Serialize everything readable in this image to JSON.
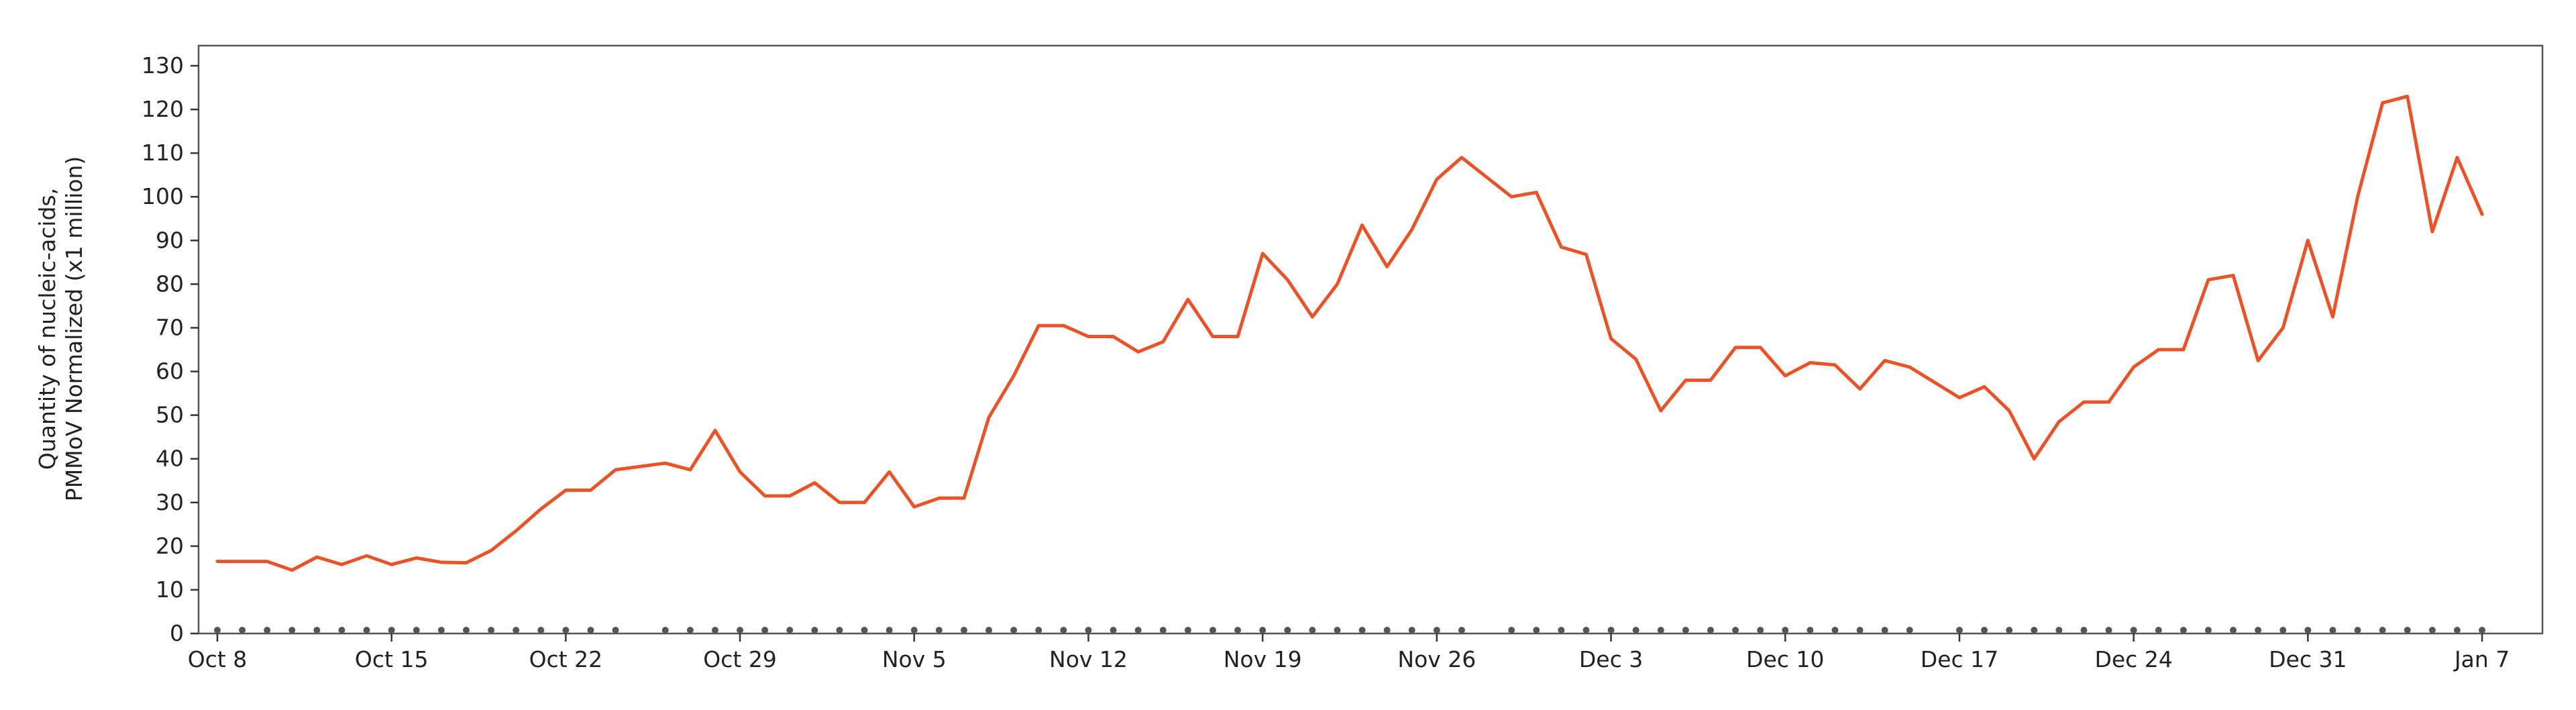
{
  "chart_data": {
    "type": "line",
    "title": "",
    "xlabel": "",
    "ylabel_lines": [
      "Quantity of nucleic-acids,",
      "PMMoV Normalized (x1 million)"
    ],
    "ylim": [
      0,
      130
    ],
    "yticks": [
      0,
      10,
      20,
      30,
      40,
      50,
      60,
      70,
      80,
      90,
      100,
      110,
      120,
      130
    ],
    "grid": false,
    "legend": "none",
    "x_start": "2023-10-08",
    "x_end": "2024-01-07",
    "xtick_labels": [
      "Oct 8",
      "Oct 15",
      "Oct 22",
      "Oct 29",
      "Nov 5",
      "Nov 12",
      "Nov 19",
      "Nov 26",
      "Dec 3",
      "Dec 10",
      "Dec 17",
      "Dec 24",
      "Dec 31",
      "Jan 7"
    ],
    "xtick_dates": [
      "2023-10-08",
      "2023-10-15",
      "2023-10-22",
      "2023-10-29",
      "2023-11-05",
      "2023-11-12",
      "2023-11-19",
      "2023-11-26",
      "2023-12-03",
      "2023-12-10",
      "2023-12-17",
      "2023-12-24",
      "2023-12-31",
      "2024-01-07"
    ],
    "series": [
      {
        "color": "#E8542A",
        "x": [
          "2023-10-08",
          "2023-10-09",
          "2023-10-10",
          "2023-10-11",
          "2023-10-12",
          "2023-10-13",
          "2023-10-14",
          "2023-10-15",
          "2023-10-16",
          "2023-10-17",
          "2023-10-18",
          "2023-10-19",
          "2023-10-20",
          "2023-10-21",
          "2023-10-22",
          "2023-10-23",
          "2023-10-24",
          "2023-10-26",
          "2023-10-27",
          "2023-10-28",
          "2023-10-29",
          "2023-10-30",
          "2023-10-31",
          "2023-11-01",
          "2023-11-02",
          "2023-11-03",
          "2023-11-04",
          "2023-11-05",
          "2023-11-06",
          "2023-11-07",
          "2023-11-08",
          "2023-11-09",
          "2023-11-10",
          "2023-11-11",
          "2023-11-12",
          "2023-11-13",
          "2023-11-14",
          "2023-11-15",
          "2023-11-16",
          "2023-11-17",
          "2023-11-18",
          "2023-11-19",
          "2023-11-20",
          "2023-11-21",
          "2023-11-22",
          "2023-11-23",
          "2023-11-24",
          "2023-11-25",
          "2023-11-26",
          "2023-11-27",
          "2023-11-29",
          "2023-11-30",
          "2023-12-01",
          "2023-12-02",
          "2023-12-03",
          "2023-12-04",
          "2023-12-05",
          "2023-12-06",
          "2023-12-07",
          "2023-12-08",
          "2023-12-09",
          "2023-12-10",
          "2023-12-11",
          "2023-12-12",
          "2023-12-13",
          "2023-12-14",
          "2023-12-15",
          "2023-12-17",
          "2023-12-18",
          "2023-12-19",
          "2023-12-20",
          "2023-12-21",
          "2023-12-22",
          "2023-12-23",
          "2023-12-24",
          "2023-12-25",
          "2023-12-26",
          "2023-12-27",
          "2023-12-28",
          "2023-12-29",
          "2023-12-30",
          "2023-12-31",
          "2024-01-01",
          "2024-01-02",
          "2024-01-03",
          "2024-01-04",
          "2024-01-05",
          "2024-01-06",
          "2024-01-07"
        ],
        "values": [
          16.5,
          16.5,
          16.5,
          14.5,
          17.5,
          15.8,
          17.8,
          15.8,
          17.3,
          16.3,
          16.2,
          19,
          23.5,
          28.5,
          32.8,
          32.8,
          37.5,
          39,
          37.5,
          46.5,
          37,
          31.5,
          31.5,
          34.5,
          30,
          30,
          37,
          29,
          31,
          31,
          49.5,
          59,
          70.5,
          70.5,
          68,
          68,
          64.5,
          66.8,
          76.5,
          68,
          68,
          87,
          81,
          72.5,
          80,
          93.5,
          84,
          92.5,
          104,
          109,
          100,
          101,
          88.5,
          86.8,
          67.5,
          62.8,
          51,
          58,
          58,
          65.5,
          65.5,
          59,
          62,
          61.5,
          56,
          62.5,
          61,
          54,
          56.5,
          51,
          40,
          48.5,
          53,
          53,
          61,
          65,
          65,
          81,
          82,
          62.5,
          70,
          90,
          72.5,
          100,
          121.5,
          123,
          92,
          109,
          96
        ]
      }
    ],
    "sample_dates": [
      "2023-10-08",
      "2023-10-09",
      "2023-10-10",
      "2023-10-11",
      "2023-10-12",
      "2023-10-13",
      "2023-10-14",
      "2023-10-15",
      "2023-10-16",
      "2023-10-17",
      "2023-10-18",
      "2023-10-19",
      "2023-10-20",
      "2023-10-21",
      "2023-10-22",
      "2023-10-23",
      "2023-10-24",
      "2023-10-26",
      "2023-10-27",
      "2023-10-28",
      "2023-10-29",
      "2023-10-30",
      "2023-10-31",
      "2023-11-01",
      "2023-11-02",
      "2023-11-03",
      "2023-11-04",
      "2023-11-05",
      "2023-11-06",
      "2023-11-07",
      "2023-11-08",
      "2023-11-09",
      "2023-11-10",
      "2023-11-11",
      "2023-11-12",
      "2023-11-13",
      "2023-11-14",
      "2023-11-15",
      "2023-11-16",
      "2023-11-17",
      "2023-11-18",
      "2023-11-19",
      "2023-11-20",
      "2023-11-21",
      "2023-11-22",
      "2023-11-23",
      "2023-11-24",
      "2023-11-25",
      "2023-11-26",
      "2023-11-27",
      "2023-11-29",
      "2023-11-30",
      "2023-12-01",
      "2023-12-02",
      "2023-12-03",
      "2023-12-04",
      "2023-12-05",
      "2023-12-06",
      "2023-12-07",
      "2023-12-08",
      "2023-12-09",
      "2023-12-10",
      "2023-12-11",
      "2023-12-12",
      "2023-12-13",
      "2023-12-14",
      "2023-12-15",
      "2023-12-17",
      "2023-12-18",
      "2023-12-19",
      "2023-12-20",
      "2023-12-21",
      "2023-12-22",
      "2023-12-23",
      "2023-12-24",
      "2023-12-25",
      "2023-12-26",
      "2023-12-27",
      "2023-12-28",
      "2023-12-29",
      "2023-12-30",
      "2023-12-31",
      "2024-01-01",
      "2024-01-02",
      "2024-01-03",
      "2024-01-04",
      "2024-01-05",
      "2024-01-06",
      "2024-01-07"
    ]
  }
}
